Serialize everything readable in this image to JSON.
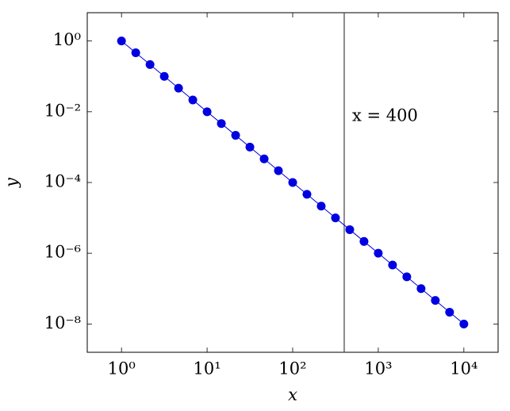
{
  "chart_data": {
    "type": "line",
    "xlabel": "x",
    "ylabel": "y",
    "x_scale": "log",
    "y_scale": "log",
    "xlim": [
      0.398,
      25119
    ],
    "ylim": [
      1.585e-09,
      6.31
    ],
    "xticks": [
      {
        "value": 1,
        "label": "10⁰"
      },
      {
        "value": 10,
        "label": "10¹"
      },
      {
        "value": 100,
        "label": "10²"
      },
      {
        "value": 1000,
        "label": "10³"
      },
      {
        "value": 10000,
        "label": "10⁴"
      }
    ],
    "yticks": [
      {
        "value": 1,
        "label": "10⁰"
      },
      {
        "value": 0.01,
        "label": "10⁻²"
      },
      {
        "value": 0.0001,
        "label": "10⁻⁴"
      },
      {
        "value": 1e-06,
        "label": "10⁻⁶"
      },
      {
        "value": 1e-08,
        "label": "10⁻⁸"
      }
    ],
    "series": [
      {
        "color": "#0000e0",
        "x": [
          1,
          1.4678,
          2.1544,
          3.1623,
          4.6416,
          6.8129,
          10,
          14.678,
          21.544,
          31.623,
          46.416,
          68.129,
          100,
          146.78,
          215.44,
          316.23,
          464.16,
          681.29,
          1000,
          1467.8,
          2154.4,
          3162.3,
          4641.6,
          6812.9,
          10000
        ],
        "values": [
          1,
          0.46416,
          0.21544,
          0.1,
          0.046416,
          0.021544,
          0.01,
          0.0046416,
          0.0021544,
          0.001,
          0.00046416,
          0.00021544,
          0.0001,
          4.6416e-05,
          2.1544e-05,
          1e-05,
          4.6416e-06,
          2.1544e-06,
          1e-06,
          4.6416e-07,
          2.1544e-07,
          1e-07,
          4.6416e-08,
          2.1544e-08,
          1e-08
        ]
      }
    ],
    "vline": {
      "x": 400,
      "color": "#404040",
      "label": "x = 400"
    }
  }
}
